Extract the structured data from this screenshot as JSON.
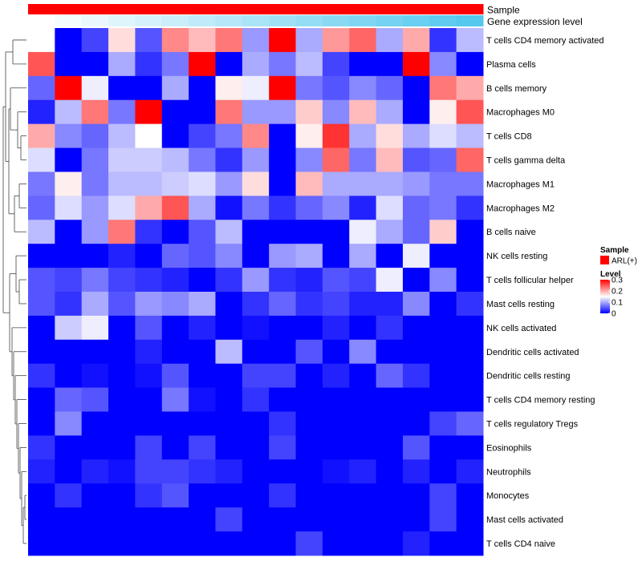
{
  "chart_data": {
    "type": "heatmap",
    "annotation_tracks": [
      {
        "name": "Sample",
        "kind": "categorical",
        "color": "#ff0000"
      },
      {
        "name": "Gene expression level",
        "kind": "gradient",
        "from_color": "#ffffff",
        "to_color": "#55c8ee"
      }
    ],
    "rows": [
      "T cells CD4 memory activated",
      "Plasma cells",
      "B cells memory",
      "Macrophages M0",
      "T cells CD8",
      "T cells gamma delta",
      "Macrophages M1",
      "Macrophages M2",
      "B cells naive",
      "NK cells resting",
      "T cells follicular helper",
      "Mast cells resting",
      "NK cells activated",
      "Dendritic cells activated",
      "Dendritic cells resting",
      "T cells CD4 memory resting",
      "T cells regulatory  Tregs",
      "Eosinophils",
      "Neutrophils",
      "Monocytes",
      "Mast cells activated",
      "T cells CD4 naive"
    ],
    "values": [
      [
        0.15,
        0.0,
        0.04,
        0.17,
        0.05,
        0.22,
        0.19,
        0.23,
        0.09,
        0.3,
        0.1,
        0.21,
        0.24,
        0.1,
        0.2,
        0.03,
        0.11
      ],
      [
        0.25,
        0.0,
        0.0,
        0.1,
        0.03,
        0.07,
        0.3,
        0.0,
        0.1,
        0.07,
        0.11,
        0.04,
        0.0,
        0.0,
        0.3,
        0.08,
        0.0
      ],
      [
        0.06,
        0.3,
        0.14,
        0.0,
        0.0,
        0.1,
        0.0,
        0.16,
        0.14,
        0.3,
        0.07,
        0.05,
        0.08,
        0.06,
        0.0,
        0.23,
        0.2
      ],
      [
        0.02,
        0.11,
        0.23,
        0.07,
        0.3,
        0.0,
        0.0,
        0.23,
        0.09,
        0.09,
        0.18,
        0.08,
        0.19,
        0.1,
        0.0,
        0.16,
        0.25
      ],
      [
        0.2,
        0.08,
        0.06,
        0.11,
        0.15,
        0.0,
        0.04,
        0.07,
        0.22,
        0.0,
        0.16,
        0.27,
        0.1,
        0.17,
        0.1,
        0.13,
        0.11
      ],
      [
        0.13,
        0.0,
        0.07,
        0.12,
        0.12,
        0.11,
        0.07,
        0.03,
        0.09,
        0.0,
        0.08,
        0.24,
        0.07,
        0.19,
        0.05,
        0.06,
        0.24
      ],
      [
        0.07,
        0.16,
        0.07,
        0.11,
        0.11,
        0.12,
        0.13,
        0.09,
        0.17,
        0.0,
        0.19,
        0.1,
        0.1,
        0.1,
        0.09,
        0.07,
        0.07
      ],
      [
        0.06,
        0.13,
        0.09,
        0.13,
        0.2,
        0.25,
        0.1,
        0.01,
        0.07,
        0.03,
        0.06,
        0.08,
        0.02,
        0.13,
        0.06,
        0.07,
        0.03
      ],
      [
        0.11,
        0.0,
        0.09,
        0.23,
        0.03,
        0.0,
        0.05,
        0.11,
        0.0,
        0.0,
        0.0,
        0.0,
        0.14,
        0.1,
        0.06,
        0.18,
        0.0
      ],
      [
        0.0,
        0.0,
        0.0,
        0.02,
        0.0,
        0.06,
        0.05,
        0.08,
        0.0,
        0.09,
        0.1,
        0.0,
        0.1,
        0.0,
        0.14,
        0.0,
        0.0
      ],
      [
        0.05,
        0.04,
        0.07,
        0.04,
        0.03,
        0.02,
        0.0,
        0.03,
        0.09,
        0.03,
        0.02,
        0.05,
        0.04,
        0.14,
        0.0,
        0.08,
        0.0
      ],
      [
        0.05,
        0.03,
        0.1,
        0.05,
        0.09,
        0.08,
        0.1,
        0.0,
        0.03,
        0.06,
        0.03,
        0.04,
        0.02,
        0.02,
        0.08,
        0.0,
        0.03
      ],
      [
        0.0,
        0.12,
        0.14,
        0.0,
        0.05,
        0.0,
        0.02,
        0.0,
        0.01,
        0.0,
        0.0,
        0.02,
        0.0,
        0.03,
        0.0,
        0.0,
        0.0
      ],
      [
        0.0,
        0.0,
        0.0,
        0.0,
        0.02,
        0.0,
        0.0,
        0.11,
        0.0,
        0.0,
        0.05,
        0.0,
        0.08,
        0.0,
        0.0,
        0.0,
        0.0
      ],
      [
        0.03,
        0.0,
        0.01,
        0.0,
        0.01,
        0.05,
        0.0,
        0.0,
        0.04,
        0.04,
        0.0,
        0.02,
        0.0,
        0.06,
        0.03,
        0.0,
        0.0
      ],
      [
        0.0,
        0.06,
        0.05,
        0.0,
        0.0,
        0.07,
        0.01,
        0.0,
        0.03,
        0.0,
        0.0,
        0.0,
        0.0,
        0.0,
        0.0,
        0.0,
        0.0
      ],
      [
        0.0,
        0.08,
        0.0,
        0.0,
        0.0,
        0.0,
        0.0,
        0.0,
        0.0,
        0.03,
        0.0,
        0.0,
        0.0,
        0.0,
        0.0,
        0.04,
        0.06
      ],
      [
        0.03,
        0.0,
        0.0,
        0.0,
        0.04,
        0.0,
        0.04,
        0.0,
        0.0,
        0.04,
        0.0,
        0.0,
        0.0,
        0.0,
        0.05,
        0.0,
        0.0
      ],
      [
        0.02,
        0.0,
        0.02,
        0.01,
        0.04,
        0.04,
        0.03,
        0.02,
        0.0,
        0.0,
        0.0,
        0.01,
        0.02,
        0.0,
        0.02,
        0.0,
        0.02
      ],
      [
        0.0,
        0.03,
        0.0,
        0.0,
        0.03,
        0.05,
        0.0,
        0.0,
        0.0,
        0.03,
        0.0,
        0.0,
        0.0,
        0.0,
        0.0,
        0.04,
        0.0
      ],
      [
        0.0,
        0.0,
        0.0,
        0.0,
        0.0,
        0.0,
        0.0,
        0.04,
        0.0,
        0.0,
        0.0,
        0.0,
        0.0,
        0.0,
        0.0,
        0.04,
        0.0
      ],
      [
        0.0,
        0.0,
        0.0,
        0.0,
        0.0,
        0.0,
        0.0,
        0.0,
        0.0,
        0.0,
        0.04,
        0.0,
        0.0,
        0.0,
        0.02,
        0.0,
        0.0
      ]
    ],
    "color_scale": {
      "low": "#0000ff",
      "mid": "#ffffff",
      "high": "#ff0000",
      "min": 0,
      "mid_value": 0.15,
      "max": 0.3
    },
    "legend": {
      "sample_title": "Sample",
      "sample_entry": "ARL(+)",
      "sample_color": "#ff0000",
      "level_title": "Level",
      "level_ticks": [
        "0.3",
        "0.2",
        "0.1",
        "0"
      ],
      "level_tick_values": [
        0.3,
        0.2,
        0.1,
        0
      ],
      "placement": "right"
    },
    "row_dendrogram": "left",
    "grid": false
  }
}
